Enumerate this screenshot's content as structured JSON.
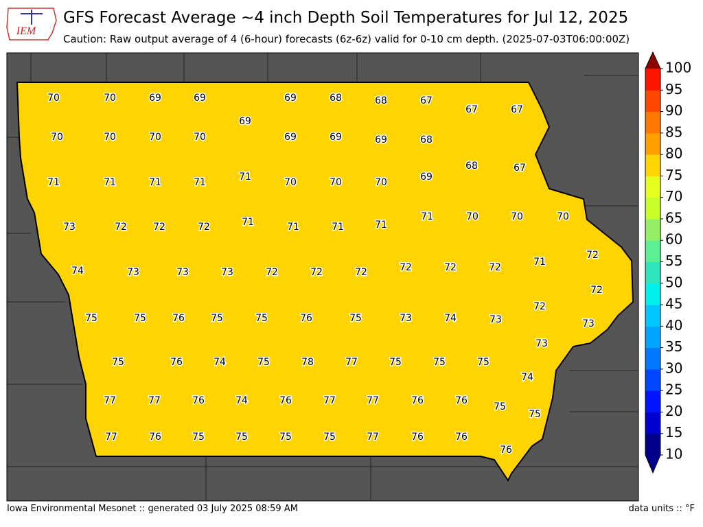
{
  "header": {
    "logo": "IEM",
    "title": "GFS Forecast Average ~4 inch Depth Soil Temperatures for Jul 12, 2025",
    "subtitle": "Caution: Raw output average of 4 (6-hour) forecasts (6z-6z) valid for 0-10 cm depth. (2025-07-03T06:00:00Z)"
  },
  "footer": {
    "left": "Iowa Environmental Mesonet :: generated 03 July 2025 08:59 AM",
    "right": "data units :: °F"
  },
  "legend": {
    "ticks": [
      10,
      15,
      20,
      25,
      30,
      35,
      40,
      45,
      50,
      55,
      60,
      65,
      70,
      75,
      80,
      85,
      90,
      95,
      100
    ],
    "colors": [
      "#00008c",
      "#0000d2",
      "#0014ff",
      "#0046ff",
      "#0078ff",
      "#00a5ff",
      "#00c8ff",
      "#00f0f0",
      "#2de6be",
      "#5af096",
      "#96f064",
      "#c8ff28",
      "#e6ff1e",
      "#ffd400",
      "#ffa000",
      "#ff7800",
      "#ff4600",
      "#ff1400",
      "#c80000"
    ],
    "under": "#00008c",
    "over": "#8c0000"
  },
  "counties": [
    70,
    70,
    69,
    69,
    69,
    69,
    68,
    68,
    67,
    67,
    67,
    70,
    70,
    70,
    70,
    69,
    69,
    69,
    68,
    68,
    67,
    71,
    71,
    71,
    71,
    71,
    70,
    70,
    70,
    69,
    73,
    72,
    72,
    72,
    71,
    71,
    71,
    71,
    71,
    70,
    70,
    70,
    74,
    73,
    73,
    73,
    72,
    72,
    72,
    72,
    72,
    72,
    71,
    72,
    75,
    75,
    76,
    75,
    75,
    76,
    75,
    73,
    74,
    73,
    72,
    72,
    73,
    75,
    76,
    74,
    75,
    78,
    77,
    75,
    75,
    75,
    73,
    74,
    77,
    77,
    76,
    74,
    76,
    77,
    77,
    76,
    76,
    75,
    75,
    77,
    76,
    75,
    75,
    75,
    75,
    77,
    76,
    76,
    76
  ]
}
